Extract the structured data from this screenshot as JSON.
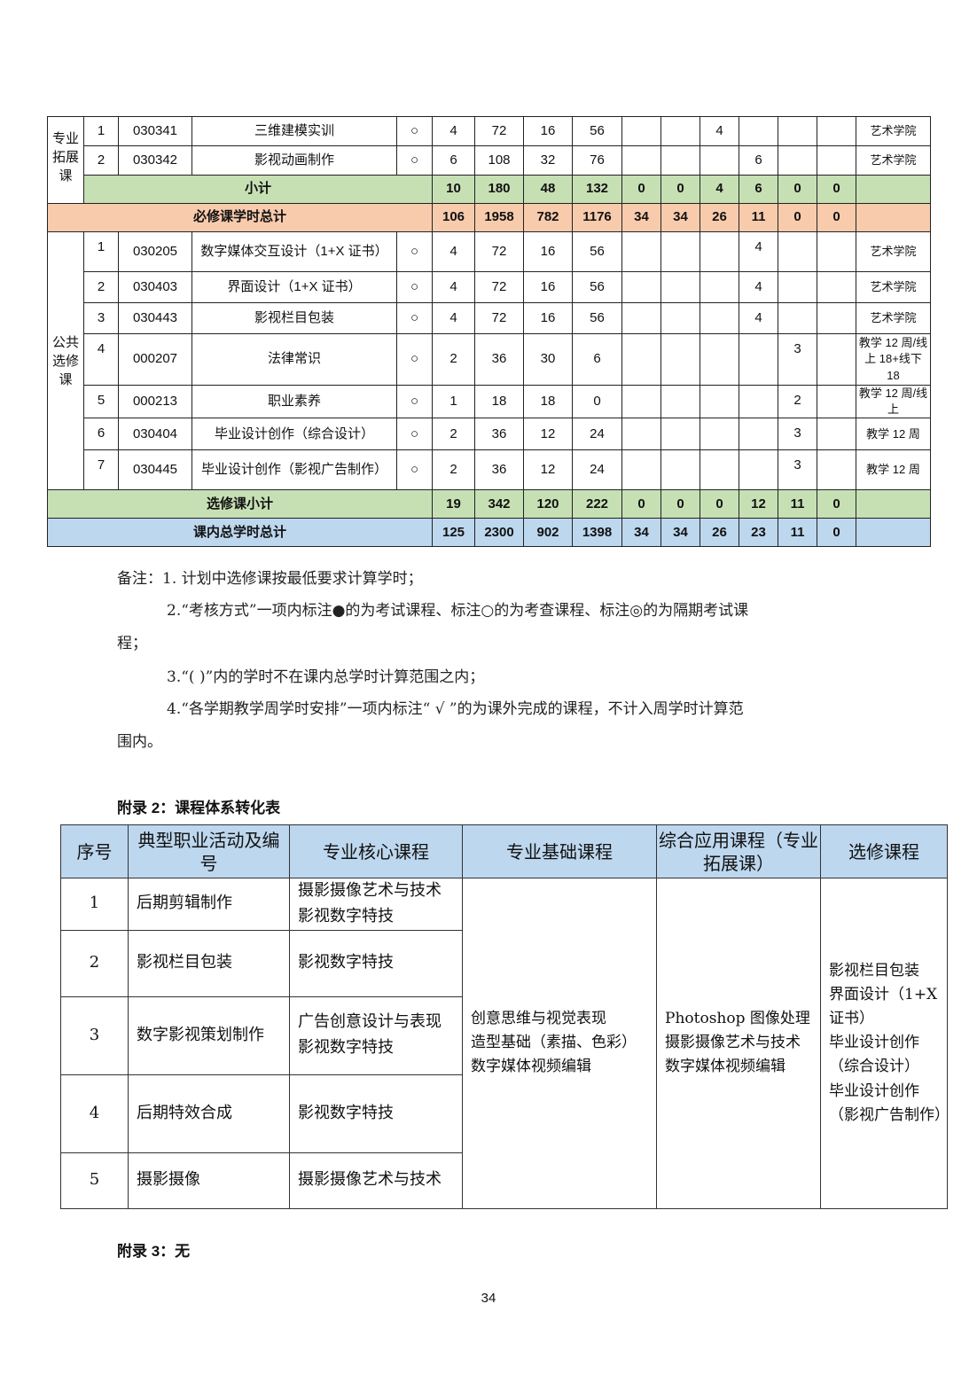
{
  "table1": {
    "group_ext": "专业拓展课",
    "ext_rows": [
      [
        "1",
        "030341",
        "三维建模实训",
        "○",
        "4",
        "72",
        "16",
        "56",
        "",
        "",
        "4",
        "",
        "",
        "",
        "艺术学院"
      ],
      [
        "2",
        "030342",
        "影视动画制作",
        "○",
        "6",
        "108",
        "32",
        "76",
        "",
        "",
        "",
        "6",
        "",
        "",
        "艺术学院"
      ]
    ],
    "ext_subtotal": {
      "label": "小计",
      "values": [
        "10",
        "180",
        "48",
        "132",
        "0",
        "0",
        "4",
        "6",
        "0",
        "0"
      ]
    },
    "required_total": {
      "label": "必修课学时总计",
      "values": [
        "106",
        "1958",
        "782",
        "1176",
        "34",
        "34",
        "26",
        "11",
        "0",
        "0"
      ]
    },
    "group_pub": "公共选修课",
    "pub_rows": [
      [
        "1",
        "030205",
        "数字媒体交互设计（1+X 证书）",
        "○",
        "4",
        "72",
        "16",
        "56",
        "",
        "",
        "",
        "4",
        "",
        "",
        "艺术学院"
      ],
      [
        "2",
        "030403",
        "界面设计（1+X 证书）",
        "○",
        "4",
        "72",
        "16",
        "56",
        "",
        "",
        "",
        "4",
        "",
        "",
        "艺术学院"
      ],
      [
        "3",
        "030443",
        "影视栏目包装",
        "○",
        "4",
        "72",
        "16",
        "56",
        "",
        "",
        "",
        "4",
        "",
        "",
        "艺术学院"
      ],
      [
        "4",
        "000207",
        "法律常识",
        "○",
        "2",
        "36",
        "30",
        "6",
        "",
        "",
        "",
        "",
        "3",
        "",
        "教学 12 周/线上 18+线下 18"
      ],
      [
        "5",
        "000213",
        "职业素养",
        "○",
        "1",
        "18",
        "18",
        "0",
        "",
        "",
        "",
        "",
        "2",
        "",
        "教学 12 周/线上"
      ],
      [
        "6",
        "030404",
        "毕业设计创作（综合设计）",
        "○",
        "2",
        "36",
        "12",
        "24",
        "",
        "",
        "",
        "",
        "3",
        "",
        "教学 12 周"
      ],
      [
        "7",
        "030445",
        "毕业设计创作（影视广告制作）",
        "○",
        "2",
        "36",
        "12",
        "24",
        "",
        "",
        "",
        "",
        "3",
        "",
        "教学 12 周"
      ]
    ],
    "elective_subtotal": {
      "label": "选修课小计",
      "values": [
        "19",
        "342",
        "120",
        "222",
        "0",
        "0",
        "0",
        "12",
        "11",
        "0"
      ]
    },
    "grand_total": {
      "label": "课内总学时总计",
      "values": [
        "125",
        "2300",
        "902",
        "1398",
        "34",
        "34",
        "26",
        "23",
        "11",
        "0"
      ]
    }
  },
  "notes": {
    "n1": "备注：1. 计划中选修课按最低要求计算学时；",
    "n2a": "2.“考核方式”一项内标注●的为考试课程、标注○的为考查课程、标注◎的为隔期考试课",
    "n2b": "程；",
    "n3": "3.“( )”内的学时不在课内总学时计算范围之内；",
    "n4a": "4.“各学期教学周学时安排”一项内标注“ √ ”的为课外完成的课程，不计入周学时计算范",
    "n4b": "围内。"
  },
  "appendix2": {
    "title": "附录 2：课程体系转化表",
    "headers": [
      "序号",
      "典型职业活动及编号",
      "专业核心课程",
      "专业基础课程",
      "综合应用课程（专业拓展课）",
      "选修课程"
    ],
    "rows": [
      {
        "no": "1",
        "activity": "后期剪辑制作",
        "core": "摄影摄像艺术与技术\n影视数字特技"
      },
      {
        "no": "2",
        "activity": "影视栏目包装",
        "core": "影视数字特技"
      },
      {
        "no": "3",
        "activity": "数字影视策划制作",
        "core": "广告创意设计与表现\n影视数字特技"
      },
      {
        "no": "4",
        "activity": "后期特效合成",
        "core": "影视数字特技"
      },
      {
        "no": "5",
        "activity": "摄影摄像",
        "core": "摄影摄像艺术与技术"
      }
    ],
    "basic": "创意思维与视觉表现\n造型基础（素描、色彩）\n数字媒体视频编辑",
    "applied": "Photoshop 图像处理\n摄影摄像艺术与技术\n数字媒体视频编辑",
    "elective": "影视栏目包装\n界面设计（1+X证书）\n毕业设计创作（综合设计）\n毕业设计创作（影视广告制作）"
  },
  "appendix3": "附录 3：无",
  "page_number": "34",
  "colors": {
    "subtotal_green": "#c6e0b4",
    "required_orange": "#f8cbad",
    "total_blue": "#bdd7ee"
  }
}
